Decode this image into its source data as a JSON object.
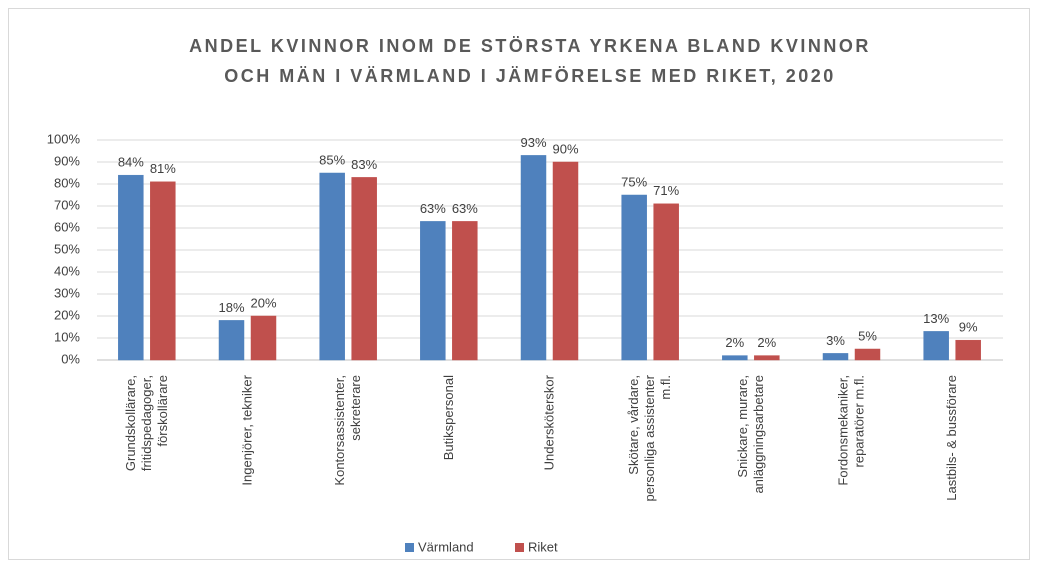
{
  "chart_data": {
    "type": "bar",
    "title": [
      "ANDEL KVINNOR INOM DE STÖRSTA YRKENA BLAND KVINNOR",
      "OCH MÄN I VÄRMLAND I JÄMFÖRELSE MED RIKET, 2020"
    ],
    "categories": [
      [
        "Grundskollärare,",
        "fritidspedagoger,",
        "förskollärare"
      ],
      [
        "Ingenjörer, tekniker"
      ],
      [
        "Kontorsassistenter,",
        "sekreterare"
      ],
      [
        "Butikspersonal"
      ],
      [
        "Undersköterskor"
      ],
      [
        "Skötare, vårdare,",
        "personliga assistenter",
        "m.fl."
      ],
      [
        "Snickare, murare,",
        "anläggningsarbetare"
      ],
      [
        "Fordonsmekaniker,",
        "reparatörer m.fl."
      ],
      [
        "Lastbils- & bussförare"
      ]
    ],
    "series": [
      {
        "name": "Värmland",
        "color": "#4f81bd",
        "values": [
          84,
          18,
          85,
          63,
          93,
          75,
          2,
          3,
          13
        ],
        "value_labels": [
          "84%",
          "18%",
          "85%",
          "63%",
          "93%",
          "75%",
          "2%",
          "3%",
          "13%"
        ]
      },
      {
        "name": "Riket",
        "color": "#c0504d",
        "values": [
          81,
          20,
          83,
          63,
          90,
          71,
          2,
          5,
          9
        ],
        "value_labels": [
          "81%",
          "20%",
          "83%",
          "63%",
          "90%",
          "71%",
          "2%",
          "5%",
          "9%"
        ]
      }
    ],
    "ylim": [
      0,
      100
    ],
    "yticks": [
      {
        "value": 0,
        "label": "0%"
      },
      {
        "value": 10,
        "label": "10%"
      },
      {
        "value": 20,
        "label": "20%"
      },
      {
        "value": 30,
        "label": "30%"
      },
      {
        "value": 40,
        "label": "40%"
      },
      {
        "value": 50,
        "label": "50%"
      },
      {
        "value": 60,
        "label": "60%"
      },
      {
        "value": 70,
        "label": "70%"
      },
      {
        "value": 80,
        "label": "80%"
      },
      {
        "value": 90,
        "label": "90%"
      },
      {
        "value": 100,
        "label": "100%"
      }
    ],
    "grid": true,
    "legend": "bottom"
  }
}
